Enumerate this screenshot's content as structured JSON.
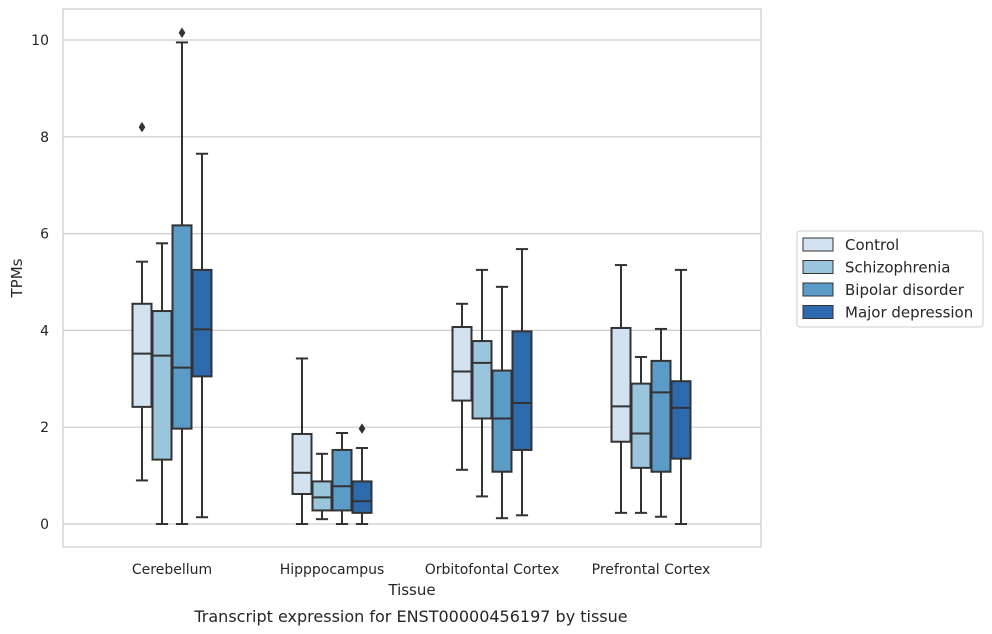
{
  "chart_data": {
    "type": "box",
    "caption": "Transcript expression for ENST00000456197 by tissue",
    "xlabel": "Tissue",
    "ylabel": "TPMs",
    "ylim": [
      -0.5,
      10.65
    ],
    "yticks": [
      0,
      2,
      4,
      6,
      8,
      10
    ],
    "grid": true,
    "legend_position": "right",
    "categories": [
      "Cerebellum",
      "Hipppocampus",
      "Orbitofontal Cortex",
      "Prefrontal Cortex"
    ],
    "series": [
      {
        "name": "Control",
        "color": "#d2e2f1",
        "boxes": [
          {
            "whisker_low": 0.9,
            "q1": 2.42,
            "median": 3.52,
            "q3": 4.55,
            "whisker_high": 5.42,
            "outliers": [
              8.2
            ]
          },
          {
            "whisker_low": 0.0,
            "q1": 0.62,
            "median": 1.06,
            "q3": 1.86,
            "whisker_high": 3.42,
            "outliers": []
          },
          {
            "whisker_low": 1.12,
            "q1": 2.55,
            "median": 3.15,
            "q3": 4.07,
            "whisker_high": 4.55,
            "outliers": []
          },
          {
            "whisker_low": 0.23,
            "q1": 1.7,
            "median": 2.43,
            "q3": 4.05,
            "whisker_high": 5.35,
            "outliers": []
          }
        ]
      },
      {
        "name": "Schizophrenia",
        "color": "#9bc4dd",
        "boxes": [
          {
            "whisker_low": 0.0,
            "q1": 1.33,
            "median": 3.48,
            "q3": 4.4,
            "whisker_high": 5.8,
            "outliers": []
          },
          {
            "whisker_low": 0.1,
            "q1": 0.28,
            "median": 0.55,
            "q3": 0.88,
            "whisker_high": 1.45,
            "outliers": []
          },
          {
            "whisker_low": 0.57,
            "q1": 2.18,
            "median": 3.33,
            "q3": 3.78,
            "whisker_high": 5.25,
            "outliers": []
          },
          {
            "whisker_low": 0.23,
            "q1": 1.16,
            "median": 1.87,
            "q3": 2.9,
            "whisker_high": 3.45,
            "outliers": []
          }
        ]
      },
      {
        "name": "Bipolar disorder",
        "color": "#5a9bc8",
        "boxes": [
          {
            "whisker_low": 0.0,
            "q1": 1.97,
            "median": 3.23,
            "q3": 6.17,
            "whisker_high": 9.95,
            "outliers": [
              10.15
            ]
          },
          {
            "whisker_low": 0.0,
            "q1": 0.28,
            "median": 0.78,
            "q3": 1.53,
            "whisker_high": 1.88,
            "outliers": []
          },
          {
            "whisker_low": 0.12,
            "q1": 1.08,
            "median": 2.18,
            "q3": 3.17,
            "whisker_high": 4.9,
            "outliers": []
          },
          {
            "whisker_low": 0.15,
            "q1": 1.08,
            "median": 2.72,
            "q3": 3.37,
            "whisker_high": 4.03,
            "outliers": []
          }
        ]
      },
      {
        "name": "Major depression",
        "color": "#2c6aad",
        "boxes": [
          {
            "whisker_low": 0.14,
            "q1": 3.05,
            "median": 4.02,
            "q3": 5.25,
            "whisker_high": 7.65,
            "outliers": []
          },
          {
            "whisker_low": 0.0,
            "q1": 0.23,
            "median": 0.47,
            "q3": 0.88,
            "whisker_high": 1.57,
            "outliers": [
              1.97
            ]
          },
          {
            "whisker_low": 0.18,
            "q1": 1.53,
            "median": 2.5,
            "q3": 3.98,
            "whisker_high": 5.68,
            "outliers": []
          },
          {
            "whisker_low": 0.0,
            "q1": 1.35,
            "median": 2.4,
            "q3": 2.95,
            "whisker_high": 5.25,
            "outliers": []
          }
        ]
      }
    ]
  }
}
